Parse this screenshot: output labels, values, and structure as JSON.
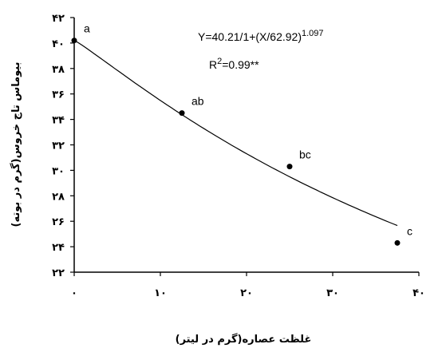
{
  "chart_data": {
    "type": "scatter",
    "title": "",
    "xlabel": "غلظت عصاره(گرم در لیتر)",
    "ylabel": "بیوماس تاج خروس(گرم در بوته)",
    "xlim": [
      0,
      40
    ],
    "ylim": [
      22,
      42
    ],
    "x_ticks": [
      0,
      10,
      20,
      30,
      40
    ],
    "y_ticks": [
      22,
      24,
      26,
      28,
      30,
      32,
      34,
      36,
      38,
      40,
      42
    ],
    "x_tick_labels": [
      "۰",
      "۱۰",
      "۲۰",
      "۳۰",
      "۴۰"
    ],
    "y_tick_labels": [
      "۲۲",
      "۲۴",
      "۲۶",
      "۲۸",
      "۳۰",
      "۳۲",
      "۳۴",
      "۳۶",
      "۳۸",
      "۴۰",
      "۴۲"
    ],
    "grid": false,
    "series": [
      {
        "points": [
          {
            "x": 0,
            "y": 40.2,
            "label": "a"
          },
          {
            "x": 12.5,
            "y": 34.5,
            "label": "ab"
          },
          {
            "x": 25,
            "y": 30.3,
            "label": "bc"
          },
          {
            "x": 37.5,
            "y": 24.3,
            "label": "c"
          }
        ],
        "fit": {
          "a": 40.21,
          "b": 62.92,
          "c": 1.097
        }
      }
    ],
    "annotations": {
      "equation_main": "Y=40.21/1+(X/62.92)",
      "equation_exp": "1.097",
      "r2_main": "R",
      "r2_sup": "2",
      "r2_tail": "=0.99**"
    }
  }
}
